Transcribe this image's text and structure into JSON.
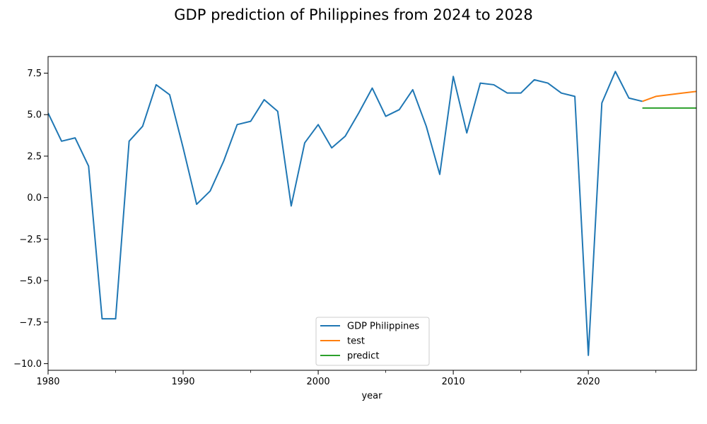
{
  "chart_data": {
    "type": "line",
    "title": "GDP prediction of Philippines from 2024 to 2028",
    "xlabel": "year",
    "ylabel": "",
    "xlim": [
      1980,
      2028
    ],
    "ylim": [
      -10.4,
      8.5
    ],
    "x_ticks": [
      1980,
      1990,
      2000,
      2010,
      2020
    ],
    "x_tick_labels": [
      "1980",
      "1990",
      "2000",
      "2010",
      "2020"
    ],
    "x_minor_ticks": [
      1985,
      1995,
      2005,
      2015,
      2025
    ],
    "y_ticks": [
      7.5,
      5.0,
      2.5,
      0.0,
      -2.5,
      -5.0,
      -7.5,
      -10.0
    ],
    "y_tick_labels": [
      "7.5",
      "5.0",
      "2.5",
      "0.0",
      "−2.5",
      "−5.0",
      "−7.5",
      "−10.0"
    ],
    "grid": false,
    "legend_position": "bottom-center",
    "series": [
      {
        "name": "GDP Philippines",
        "color": "#1f77b4",
        "x": [
          1980,
          1981,
          1982,
          1983,
          1984,
          1985,
          1986,
          1987,
          1988,
          1989,
          1990,
          1991,
          1992,
          1993,
          1994,
          1995,
          1996,
          1997,
          1998,
          1999,
          2000,
          2001,
          2002,
          2003,
          2004,
          2005,
          2006,
          2007,
          2008,
          2009,
          2010,
          2011,
          2012,
          2013,
          2014,
          2015,
          2016,
          2017,
          2018,
          2019,
          2020,
          2021,
          2022,
          2023,
          2024
        ],
        "y": [
          5.1,
          3.4,
          3.6,
          1.9,
          -7.3,
          -7.3,
          3.4,
          4.3,
          6.8,
          6.2,
          3.0,
          -0.4,
          0.4,
          2.2,
          4.4,
          4.6,
          5.9,
          5.2,
          -0.5,
          3.3,
          4.4,
          3.0,
          3.7,
          5.1,
          6.6,
          4.9,
          5.3,
          6.5,
          4.3,
          1.4,
          7.3,
          3.9,
          6.9,
          6.8,
          6.3,
          6.3,
          7.1,
          6.9,
          6.3,
          6.1,
          -9.5,
          5.7,
          7.6,
          6.0,
          5.8
        ]
      },
      {
        "name": "test",
        "color": "#ff7f0e",
        "x": [
          2024,
          2025,
          2026,
          2027,
          2028
        ],
        "y": [
          5.8,
          6.1,
          6.2,
          6.3,
          6.4
        ]
      },
      {
        "name": "predict",
        "color": "#2ca02c",
        "x": [
          2024,
          2025,
          2026,
          2027,
          2028
        ],
        "y": [
          5.4,
          5.4,
          5.4,
          5.4,
          5.4
        ]
      }
    ]
  }
}
